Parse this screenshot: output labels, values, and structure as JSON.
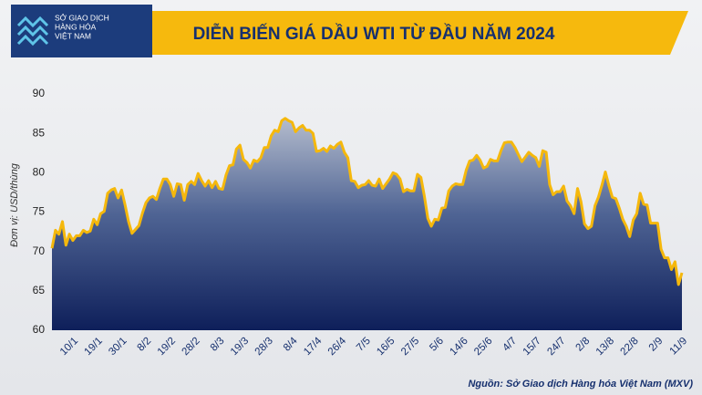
{
  "logo": {
    "lines": [
      "SỞ GIAO DỊCH",
      "HÀNG HÓA",
      "VIỆT NAM"
    ]
  },
  "source": "Nguồn: Sở Giao dịch Hàng hóa Việt Nam (MXV)",
  "chart_data": {
    "type": "area",
    "title": "DIỄN BIẾN GIÁ DẦU WTI TỪ ĐẦU NĂM 2024",
    "y_label": "Đơn vị: USD/thùng",
    "color": "#f5b80c",
    "ylim": [
      60,
      90
    ],
    "yticks": [
      60,
      65,
      70,
      75,
      80,
      85,
      90
    ],
    "categories": [
      null,
      null,
      null,
      null,
      null,
      null,
      "10/1",
      null,
      null,
      null,
      null,
      null,
      null,
      "19/1",
      null,
      null,
      null,
      null,
      null,
      null,
      "30/1",
      null,
      null,
      null,
      null,
      null,
      null,
      "8/2",
      null,
      null,
      null,
      null,
      null,
      null,
      "19/2",
      null,
      null,
      null,
      null,
      null,
      null,
      "28/2",
      null,
      null,
      null,
      null,
      null,
      null,
      "8/3",
      null,
      null,
      null,
      null,
      null,
      null,
      "19/3",
      null,
      null,
      null,
      null,
      null,
      null,
      "28/3",
      null,
      null,
      null,
      null,
      null,
      null,
      "8/4",
      null,
      null,
      null,
      null,
      null,
      null,
      "17/4",
      null,
      null,
      null,
      null,
      null,
      null,
      "26/4",
      null,
      null,
      null,
      null,
      null,
      null,
      "7/5",
      null,
      null,
      null,
      null,
      null,
      null,
      "16/5",
      null,
      null,
      null,
      null,
      null,
      null,
      "27/5",
      null,
      null,
      null,
      null,
      null,
      null,
      "5/6",
      null,
      null,
      null,
      null,
      null,
      null,
      "14/6",
      null,
      null,
      null,
      null,
      null,
      null,
      "25/6",
      null,
      null,
      null,
      null,
      null,
      null,
      "4/7",
      null,
      null,
      null,
      null,
      null,
      null,
      "15/7",
      null,
      null,
      null,
      null,
      null,
      null,
      "24/7",
      null,
      null,
      null,
      null,
      null,
      null,
      "2/8",
      null,
      null,
      null,
      null,
      null,
      null,
      "13/8",
      null,
      null,
      null,
      null,
      null,
      null,
      "22/8",
      null,
      null,
      null,
      null,
      null,
      null,
      "2/9",
      null,
      null,
      null,
      null,
      null,
      null,
      "11/9"
    ],
    "values": [
      70.4,
      72.7,
      72.2,
      73.8,
      70.8,
      72.2,
      71.4,
      72.0,
      72.0,
      72.7,
      72.4,
      72.6,
      74.1,
      73.4,
      74.8,
      75.1,
      77.4,
      77.8,
      78.0,
      76.8,
      77.8,
      75.9,
      73.8,
      72.3,
      72.8,
      73.3,
      74.9,
      76.2,
      76.8,
      77.0,
      76.6,
      78.0,
      79.2,
      79.2,
      78.5,
      77.0,
      78.6,
      78.5,
      76.5,
      78.5,
      78.9,
      78.5,
      79.9,
      79.0,
      78.3,
      79.0,
      78.1,
      78.9,
      78.0,
      77.9,
      79.7,
      80.9,
      81.0,
      83.0,
      83.5,
      81.7,
      81.3,
      80.6,
      81.6,
      81.4,
      81.9,
      83.2,
      83.2,
      84.7,
      85.4,
      85.2,
      86.6,
      86.9,
      86.6,
      86.4,
      85.2,
      85.7,
      86.0,
      85.4,
      85.4,
      85.0,
      82.7,
      82.8,
      83.1,
      82.7,
      83.4,
      83.1,
      83.6,
      83.9,
      82.6,
      81.9,
      79.0,
      78.9,
      78.1,
      78.4,
      78.5,
      79.0,
      78.4,
      78.3,
      79.2,
      78.0,
      78.6,
      79.2,
      80.0,
      79.8,
      79.2,
      77.6,
      77.9,
      77.7,
      77.7,
      79.8,
      79.4,
      77.0,
      74.2,
      73.2,
      74.1,
      74.0,
      75.5,
      75.6,
      77.7,
      78.3,
      78.6,
      78.5,
      78.5,
      80.3,
      81.5,
      81.6,
      82.2,
      81.6,
      80.6,
      80.8,
      81.7,
      81.5,
      81.5,
      82.8,
      83.8,
      83.9,
      83.9,
      83.2,
      82.3,
      81.4,
      82.0,
      82.6,
      82.2,
      81.9,
      80.8,
      82.8,
      82.6,
      78.5,
      77.2,
      77.6,
      77.6,
      78.3,
      76.4,
      75.8,
      74.8,
      78.0,
      76.3,
      73.5,
      72.9,
      73.2,
      75.8,
      76.9,
      78.4,
      80.1,
      78.4,
      76.9,
      76.7,
      75.5,
      74.1,
      73.2,
      71.9,
      74.0,
      74.8,
      77.4,
      76.0,
      75.9,
      73.6,
      73.6,
      73.6,
      70.3,
      69.2,
      69.2,
      67.7,
      68.7,
      65.8,
      67.3
    ]
  }
}
